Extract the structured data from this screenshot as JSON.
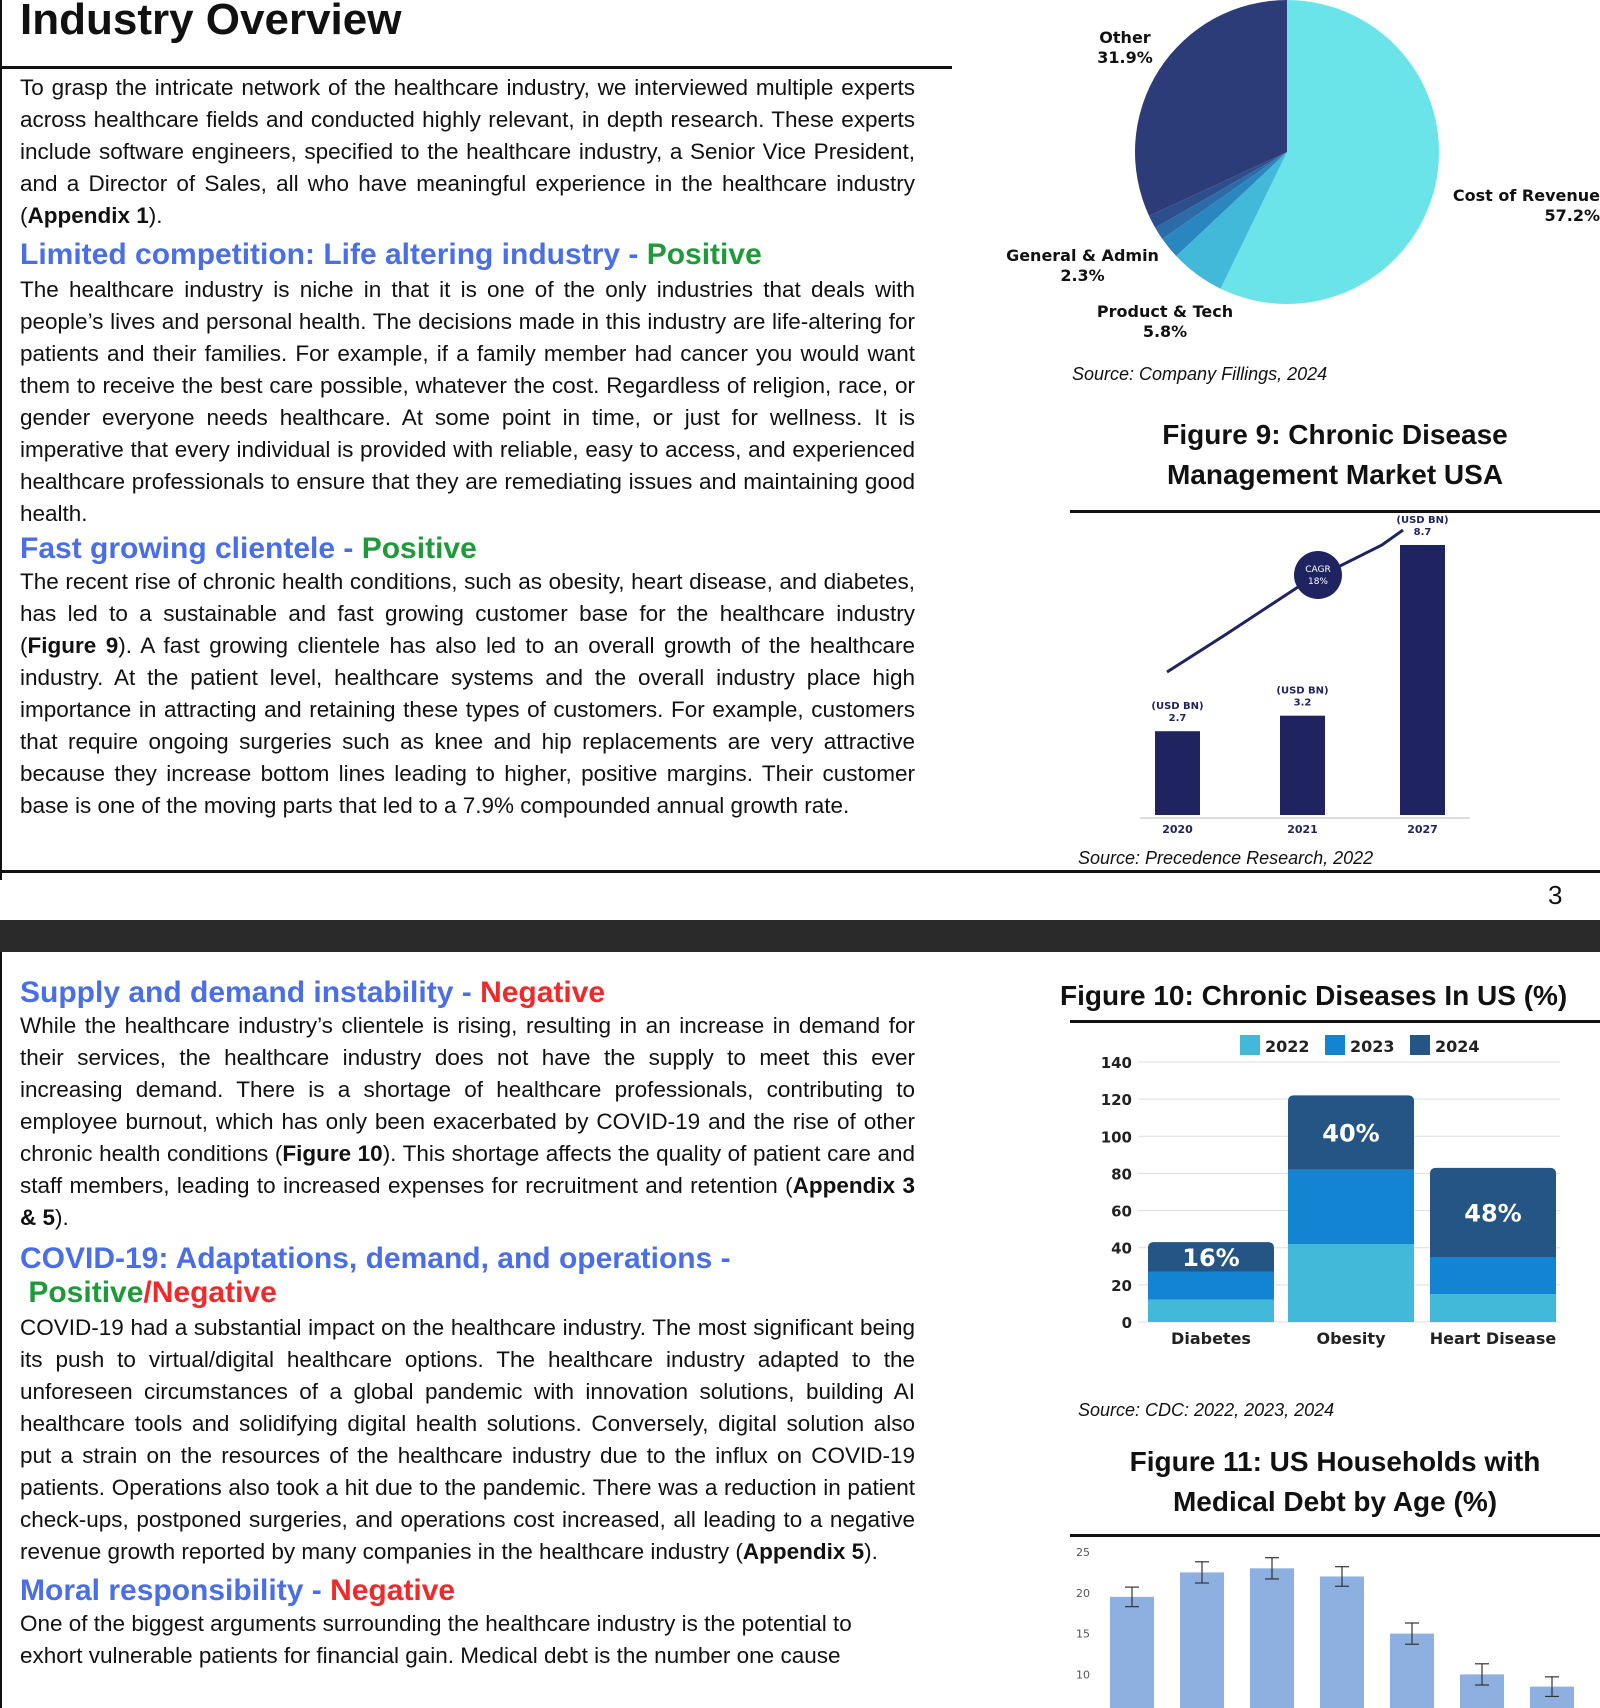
{
  "page1": {
    "title": "Industry Overview",
    "intro": "To grasp the intricate network of the healthcare industry, we interviewed multiple experts across healthcare fields and conducted highly relevant, in depth research. These experts include software engineers, specified to the healthcare industry, a Senior Vice President, and a Director of Sales, all who have meaningful experience in the healthcare industry (",
    "intro_ref": "Appendix 1",
    "intro_end": ").",
    "sec1": {
      "heading": "Limited competition: Life altering industry - ",
      "tag": "Positive",
      "text": "The healthcare industry is niche in that it is one of the only industries that deals with people’s lives and personal health. The decisions made in this industry are life-altering for patients and their families. For example, if a family member had cancer you would want them to receive the best care possible, whatever the cost. Regardless of religion, race, or gender everyone needs healthcare. At some point in time, or just for wellness. It is imperative that every individual is provided with reliable, easy to access, and experienced healthcare professionals to ensure that they are remediating issues and maintaining good health."
    },
    "sec2": {
      "heading": "Fast growing clientele - ",
      "tag": "Positive",
      "text_a": "The recent rise of chronic health conditions, such as obesity, heart disease, and diabetes, has led to a sustainable and fast growing customer base for the healthcare industry (",
      "ref": "Figure 9",
      "text_b": "). A fast growing clientele has also led to an overall growth of the healthcare industry. At the patient level, healthcare systems and the overall industry place high importance in attracting and retaining these types of customers. For example, customers that require ongoing surgeries such as knee and hip replacements are very attractive because they increase bottom lines leading to higher, positive margins. Their customer base is one of the moving parts that led to a 7.9% compounded annual growth rate."
    },
    "page_number": "3"
  },
  "pie": {
    "source": "Source: Company Fillings, 2024"
  },
  "fig9": {
    "title_line1": "Figure 9: Chronic Disease",
    "title_line2": "Management Market USA",
    "source": "Source: Precedence Research, 2022"
  },
  "page2": {
    "sec3": {
      "heading": "Supply and demand instability - ",
      "tag": "Negative",
      "text_a": "While the healthcare industry’s clientele is rising, resulting in an increase in demand for their services, the healthcare industry does not have the supply to meet this ever increasing demand. There is a shortage of healthcare professionals, contributing to employee burnout, which has only been exacerbated by COVID-19 and the rise of other chronic health conditions (",
      "ref1": "Figure 10",
      "text_b": "). This shortage affects the quality of patient care and staff members, leading to increased expenses for recruitment and retention (",
      "ref2": "Appendix 3 & 5",
      "text_c": ")."
    },
    "sec4": {
      "heading": "COVID-19: Adaptations, demand, and operations -",
      "tag_pos": "Positive",
      "slash": "/",
      "tag_neg": "Negative",
      "text_a": "COVID-19 had a substantial impact on the healthcare industry. The most significant being its push to virtual/digital healthcare options. The healthcare industry adapted to the unforeseen circumstances of a global pandemic with innovation solutions, building AI healthcare tools and solidifying digital health solutions. Conversely, digital solution also put a strain on the resources of the healthcare industry due to the influx on COVID-19 patients. Operations also took a hit due to the pandemic. There was a reduction in patient check-ups, postponed surgeries, and operations cost increased, all leading to a negative revenue growth reported by many companies in the healthcare industry (",
      "ref": "Appendix 5",
      "text_b": ")."
    },
    "sec5": {
      "heading": "Moral responsibility - ",
      "tag": "Negative",
      "text": "One of the biggest arguments surrounding the healthcare industry is the potential to exhort vulnerable patients for financial gain. Medical debt is the number one cause"
    }
  },
  "fig10": {
    "title": "Figure 10: Chronic Diseases In US (%)",
    "source": "Source: CDC: 2022, 2023, 2024"
  },
  "fig11": {
    "title_line1": "Figure 11: US Households with",
    "title_line2": "Medical Debt by Age (%)"
  },
  "colors": {
    "pie_cyan": "#6ae4e8",
    "pie_navy": "#2b2f66",
    "bar_navy": "#1f2460",
    "light_blue": "#43b9d9",
    "mid_blue": "#1384d2",
    "dark_blue": "#255585",
    "fig11_bar": "#8eb0e0"
  },
  "chart_data": [
    {
      "type": "pie",
      "labels": [
        "Cost of Revenue",
        "Product & Tech",
        "General & Admin",
        "Other"
      ],
      "label_pct": [
        "57.2%",
        "5.8%",
        "2.3%",
        "31.9%"
      ],
      "values": [
        57.2,
        5.8,
        2.3,
        31.9
      ],
      "slice_colors": [
        "#6ae4e8",
        "#43b9d9",
        "#2a86be",
        "#2b3c78"
      ],
      "extra_slices": [
        1.4,
        1.4
      ],
      "extra_colors": [
        "#2d6aa8",
        "#2d4e8c"
      ]
    },
    {
      "type": "bar",
      "categories": [
        "2020",
        "2021",
        "2027"
      ],
      "values": [
        2.7,
        3.2,
        8.7
      ],
      "value_unit": "(USD BN)",
      "annotation": [
        "CAGR",
        "18%"
      ]
    },
    {
      "type": "bar",
      "stacked": true,
      "categories": [
        "Diabetes",
        "Obesity",
        "Heart Disease"
      ],
      "series": [
        {
          "name": "2022",
          "values": [
            12,
            42,
            15
          ]
        },
        {
          "name": "2023",
          "values": [
            15,
            40,
            20
          ]
        },
        {
          "name": "2024",
          "values": [
            16,
            40,
            48
          ]
        }
      ],
      "bar_labels": [
        "16%",
        "40%",
        "48%"
      ],
      "yticks": [
        "140",
        "120",
        "100",
        "80",
        "60",
        "40",
        "20",
        "0"
      ],
      "ylim": [
        0,
        140
      ],
      "legend": "top"
    },
    {
      "type": "bar",
      "values": [
        19.5,
        22.5,
        23,
        22,
        15,
        10,
        8.5
      ],
      "errors": [
        1.2,
        1.3,
        1.3,
        1.2,
        1.3,
        1.3,
        1.2
      ],
      "yticks": [
        "25",
        "20",
        "15",
        "10"
      ],
      "ylim": [
        0,
        25
      ]
    }
  ]
}
